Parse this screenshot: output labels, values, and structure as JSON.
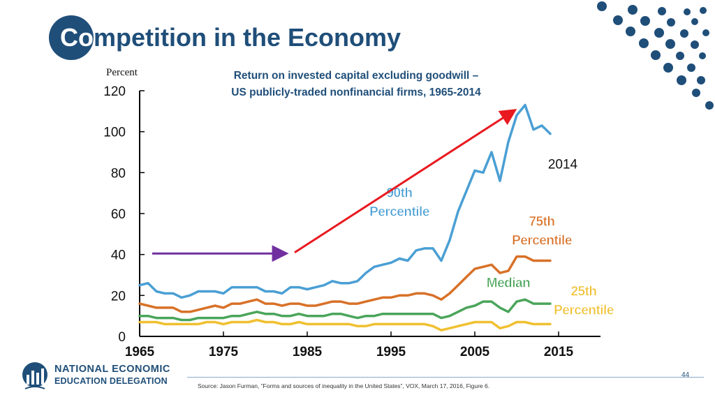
{
  "title": {
    "first": "Co",
    "rest": "mpetition in the Economy"
  },
  "colors": {
    "brand": "#1f4e79",
    "dots": "#1f4e79",
    "p90": "#4a9fd4",
    "p75": "#d87128",
    "median": "#4aa55a",
    "p25": "#f0c030",
    "axis": "#000000",
    "trend_arrow": "#e8191f",
    "flat_arrow": "#7030a0"
  },
  "chart_data": {
    "type": "line",
    "title": "Return on invested capital excluding goodwill –",
    "subtitle": "US publicly-traded nonfinancial firms, 1965-2014",
    "ylabel": "Percent",
    "xlabel": "",
    "xlim": [
      1965,
      2020
    ],
    "ylim": [
      0,
      120
    ],
    "x_ticks": [
      1965,
      1975,
      1985,
      1995,
      2005,
      2015
    ],
    "y_ticks": [
      0,
      20,
      40,
      60,
      80,
      100,
      120
    ],
    "grid": false,
    "series": [
      {
        "key": "p90",
        "name": "90th Percentile",
        "name_lines": [
          "90th",
          "Percentile"
        ],
        "x": [
          1965,
          1966,
          1967,
          1968,
          1969,
          1970,
          1971,
          1972,
          1973,
          1974,
          1975,
          1976,
          1977,
          1978,
          1979,
          1980,
          1981,
          1982,
          1983,
          1984,
          1985,
          1986,
          1987,
          1988,
          1989,
          1990,
          1991,
          1992,
          1993,
          1994,
          1995,
          1996,
          1997,
          1998,
          1999,
          2000,
          2001,
          2002,
          2003,
          2004,
          2005,
          2006,
          2007,
          2008,
          2009,
          2010,
          2011,
          2012,
          2013,
          2014
        ],
        "values": [
          25,
          26,
          22,
          21,
          21,
          19,
          20,
          22,
          22,
          22,
          21,
          24,
          24,
          24,
          24,
          22,
          22,
          21,
          24,
          24,
          23,
          24,
          25,
          27,
          26,
          26,
          27,
          31,
          34,
          35,
          36,
          38,
          37,
          42,
          43,
          43,
          37,
          47,
          61,
          71,
          81,
          80,
          90,
          76,
          95,
          108,
          113,
          101,
          103,
          99
        ]
      },
      {
        "key": "p75",
        "name": "75th Percentile",
        "name_lines": [
          "75th",
          "Percentile"
        ],
        "x": [
          1965,
          1966,
          1967,
          1968,
          1969,
          1970,
          1971,
          1972,
          1973,
          1974,
          1975,
          1976,
          1977,
          1978,
          1979,
          1980,
          1981,
          1982,
          1983,
          1984,
          1985,
          1986,
          1987,
          1988,
          1989,
          1990,
          1991,
          1992,
          1993,
          1994,
          1995,
          1996,
          1997,
          1998,
          1999,
          2000,
          2001,
          2002,
          2003,
          2004,
          2005,
          2006,
          2007,
          2008,
          2009,
          2010,
          2011,
          2012,
          2013,
          2014
        ],
        "values": [
          16,
          15,
          14,
          14,
          14,
          12,
          12,
          13,
          14,
          15,
          14,
          16,
          16,
          17,
          18,
          16,
          16,
          15,
          16,
          16,
          15,
          15,
          16,
          17,
          17,
          16,
          16,
          17,
          18,
          19,
          19,
          20,
          20,
          21,
          21,
          20,
          18,
          21,
          25,
          29,
          33,
          34,
          35,
          31,
          32,
          39,
          39,
          37,
          37,
          37
        ]
      },
      {
        "key": "median",
        "name": "Median",
        "name_lines": [
          "Median"
        ],
        "x": [
          1965,
          1966,
          1967,
          1968,
          1969,
          1970,
          1971,
          1972,
          1973,
          1974,
          1975,
          1976,
          1977,
          1978,
          1979,
          1980,
          1981,
          1982,
          1983,
          1984,
          1985,
          1986,
          1987,
          1988,
          1989,
          1990,
          1991,
          1992,
          1993,
          1994,
          1995,
          1996,
          1997,
          1998,
          1999,
          2000,
          2001,
          2002,
          2003,
          2004,
          2005,
          2006,
          2007,
          2008,
          2009,
          2010,
          2011,
          2012,
          2013,
          2014
        ],
        "values": [
          10,
          10,
          9,
          9,
          9,
          8,
          8,
          9,
          9,
          9,
          9,
          10,
          10,
          11,
          12,
          11,
          11,
          10,
          10,
          11,
          10,
          10,
          10,
          11,
          11,
          10,
          9,
          10,
          10,
          11,
          11,
          11,
          11,
          11,
          11,
          11,
          9,
          10,
          12,
          14,
          15,
          17,
          17,
          14,
          12,
          17,
          18,
          16,
          16,
          16
        ]
      },
      {
        "key": "p25",
        "name": "25th Percentile",
        "name_lines": [
          "25th",
          "Percentile"
        ],
        "x": [
          1965,
          1966,
          1967,
          1968,
          1969,
          1970,
          1971,
          1972,
          1973,
          1974,
          1975,
          1976,
          1977,
          1978,
          1979,
          1980,
          1981,
          1982,
          1983,
          1984,
          1985,
          1986,
          1987,
          1988,
          1989,
          1990,
          1991,
          1992,
          1993,
          1994,
          1995,
          1996,
          1997,
          1998,
          1999,
          2000,
          2001,
          2002,
          2003,
          2004,
          2005,
          2006,
          2007,
          2008,
          2009,
          2010,
          2011,
          2012,
          2013,
          2014
        ],
        "values": [
          7,
          7,
          7,
          6,
          6,
          6,
          6,
          6,
          7,
          7,
          6,
          7,
          7,
          7,
          8,
          7,
          7,
          6,
          6,
          7,
          6,
          6,
          6,
          6,
          6,
          6,
          5,
          5,
          6,
          6,
          6,
          6,
          6,
          6,
          6,
          5,
          3,
          4,
          5,
          6,
          7,
          7,
          7,
          4,
          5,
          7,
          7,
          6,
          6,
          6
        ]
      }
    ],
    "annotations": [
      {
        "text": "2014"
      }
    ]
  },
  "footer": {
    "page_number": "44",
    "source": "Source: Jason Furman, ”Forms and sources of inequality in the United States”, VOX, March 17, 2016, Figure 6.",
    "logo_line1": "NATIONAL ECONOMIC",
    "logo_line2": "EDUCATION DELEGATION"
  }
}
